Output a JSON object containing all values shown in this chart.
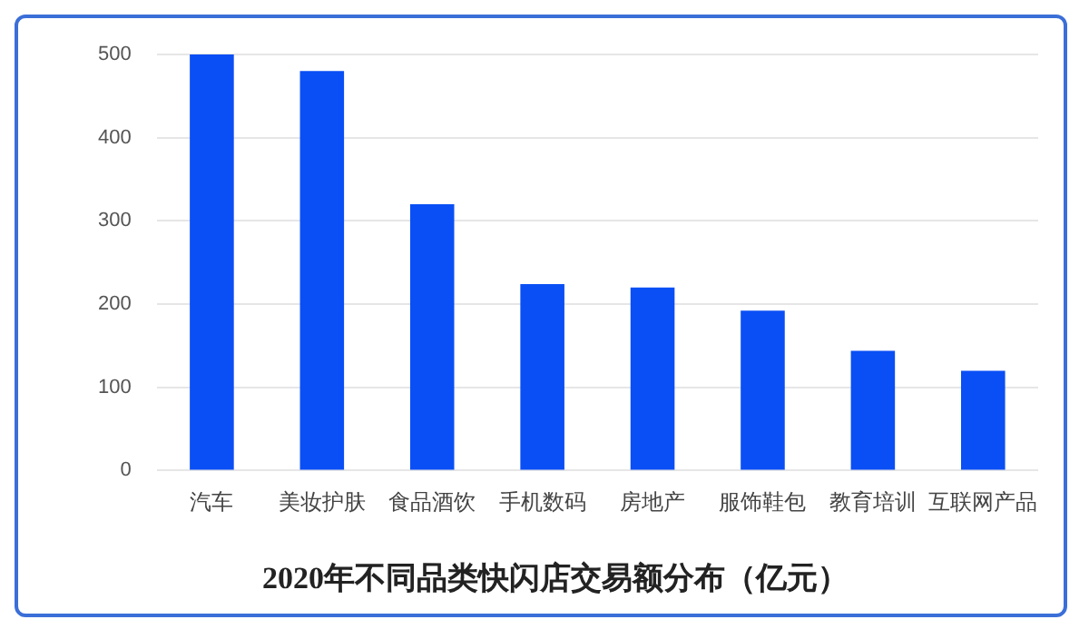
{
  "chart_data": {
    "type": "bar",
    "title": "2020年不同品类快闪店交易额分布（亿元）",
    "categories": [
      "汽车",
      "美妆护肤",
      "食品酒饮",
      "手机数码",
      "房地产",
      "服饰鞋包",
      "教育培训",
      "互联网产品"
    ],
    "values": [
      500,
      480,
      320,
      224,
      220,
      192,
      144,
      120
    ],
    "color": "#0a4ff5",
    "ylim": [
      0,
      500
    ],
    "yticks": [
      0,
      100,
      200,
      300,
      400,
      500
    ],
    "grid": "y",
    "legend": false
  }
}
